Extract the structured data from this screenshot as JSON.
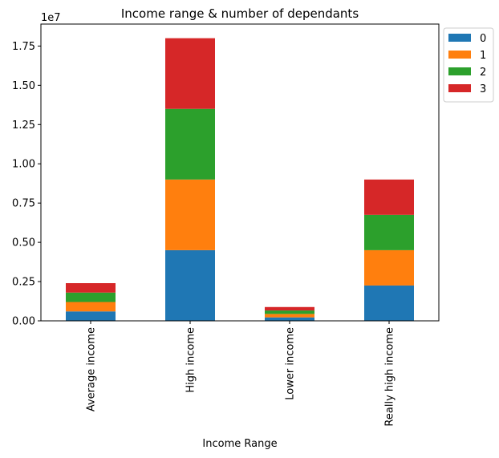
{
  "chart_data": {
    "type": "bar",
    "stacked": true,
    "title": "Income range & number of dependants",
    "xlabel": "Income Range",
    "ylabel": "",
    "y_offset_text": "1e7",
    "ylim": [
      0,
      18900000
    ],
    "yticks": [
      0,
      2500000,
      5000000,
      7500000,
      10000000,
      12500000,
      15000000,
      17500000
    ],
    "ytick_labels": [
      "0.00",
      "0.25",
      "0.50",
      "0.75",
      "1.00",
      "1.25",
      "1.50",
      "1.75"
    ],
    "categories": [
      "Average income",
      "High income",
      "Lower income",
      "Really high income"
    ],
    "series": [
      {
        "name": "0",
        "color": "#1f77b4",
        "values": [
          600000,
          4500000,
          220000,
          2250000
        ]
      },
      {
        "name": "1",
        "color": "#ff7f0e",
        "values": [
          600000,
          4500000,
          220000,
          2250000
        ]
      },
      {
        "name": "2",
        "color": "#2ca02c",
        "values": [
          600000,
          4500000,
          220000,
          2250000
        ]
      },
      {
        "name": "3",
        "color": "#d62728",
        "values": [
          600000,
          4500000,
          220000,
          2250000
        ]
      }
    ],
    "grid": false,
    "legend_position": "upper-right-outside"
  }
}
